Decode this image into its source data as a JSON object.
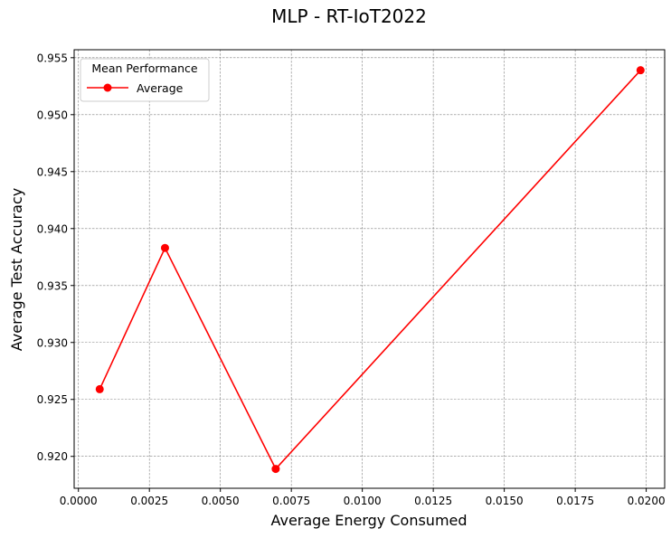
{
  "chart_data": {
    "type": "line",
    "title": "MLP - RT-IoT2022",
    "xlabel": "Average Energy Consumed",
    "ylabel": "Average Test Accuracy",
    "xlim": [
      -0.00015,
      0.02065
    ],
    "ylim": [
      0.9172,
      0.9557
    ],
    "xticks": [
      0.0,
      0.0025,
      0.005,
      0.0075,
      0.01,
      0.0125,
      0.015,
      0.0175,
      0.02
    ],
    "xtick_labels": [
      "0.0000",
      "0.0025",
      "0.0050",
      "0.0075",
      "0.0100",
      "0.0125",
      "0.0150",
      "0.0175",
      "0.0200"
    ],
    "yticks": [
      0.92,
      0.925,
      0.93,
      0.935,
      0.94,
      0.945,
      0.95,
      0.955
    ],
    "ytick_labels": [
      "0.920",
      "0.925",
      "0.930",
      "0.935",
      "0.940",
      "0.945",
      "0.950",
      "0.955"
    ],
    "grid": true,
    "legend": {
      "title": "Mean Performance",
      "placement": "top-left"
    },
    "series": [
      {
        "name": "Average",
        "color": "#ff0000",
        "marker": "circle",
        "x": [
          0.00075,
          0.00305,
          0.00695,
          0.0198
        ],
        "y": [
          0.9259,
          0.9383,
          0.9189,
          0.9539
        ]
      }
    ]
  }
}
